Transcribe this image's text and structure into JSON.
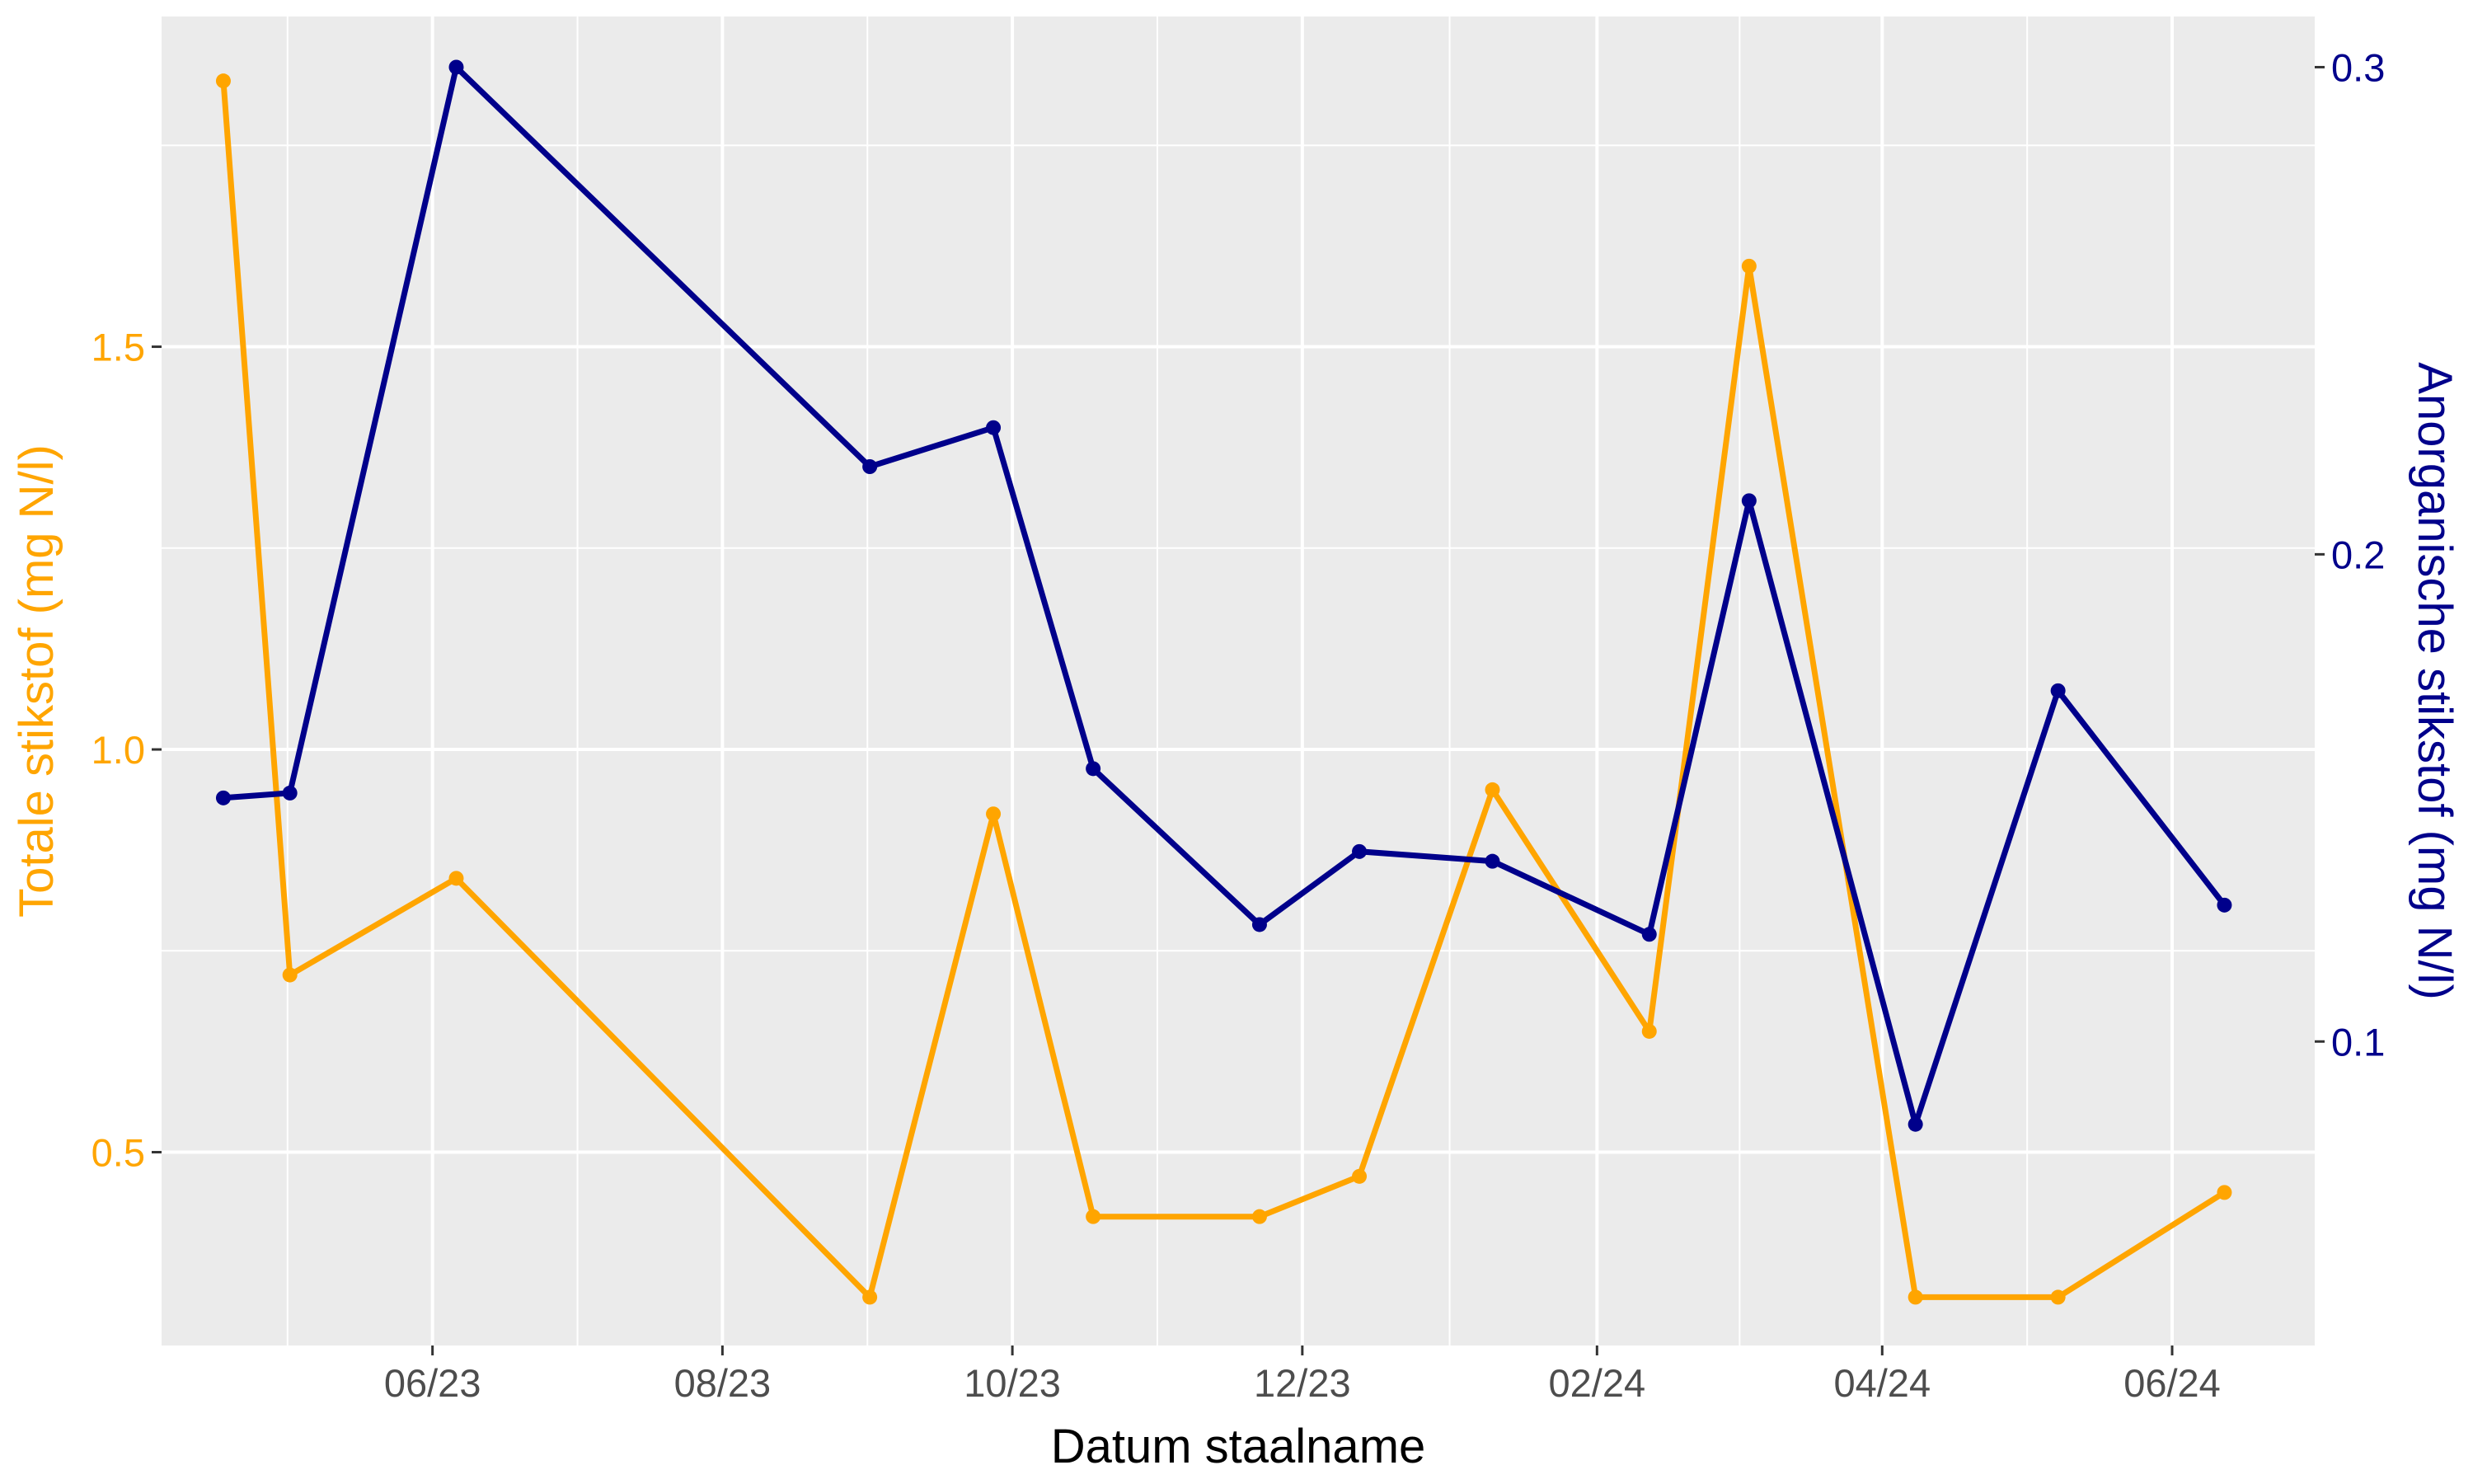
{
  "chart_data": {
    "type": "line",
    "xlabel": "Datum staalname",
    "ylabel_left": "Totale stikstof (mg N/l)",
    "ylabel_right": "Anorganische stikstof (mg N/l)",
    "grid": true,
    "legend": "none",
    "colors": {
      "left": "#FFA500",
      "right": "#00008B",
      "panel": "#EBEBEB",
      "grid": "#FFFFFF"
    },
    "x_ticks": [
      {
        "date": "2023-06-01",
        "label": "06/23"
      },
      {
        "date": "2023-08-01",
        "label": "08/23"
      },
      {
        "date": "2023-10-01",
        "label": "10/23"
      },
      {
        "date": "2023-12-01",
        "label": "12/23"
      },
      {
        "date": "2024-02-01",
        "label": "02/24"
      },
      {
        "date": "2024-04-01",
        "label": "04/24"
      },
      {
        "date": "2024-06-01",
        "label": "06/24"
      }
    ],
    "xlim": [
      "2023-04-05",
      "2024-07-01"
    ],
    "ylim_left": [
      0.26,
      1.91
    ],
    "ylim_right": [
      0.0376,
      0.3104
    ],
    "y_ticks_left": [
      {
        "value": 0.5,
        "label": "0.5"
      },
      {
        "value": 1.0,
        "label": "1.0"
      },
      {
        "value": 1.5,
        "label": "1.5"
      }
    ],
    "y_ticks_right": [
      {
        "value": 0.1,
        "label": "0.1"
      },
      {
        "value": 0.2,
        "label": "0.2"
      },
      {
        "value": 0.3,
        "label": "0.3"
      }
    ],
    "series": [
      {
        "axis": "left",
        "values": [
          {
            "x": "2023-04-18",
            "y": 1.83
          },
          {
            "x": "2023-05-02",
            "y": 0.72
          },
          {
            "x": "2023-06-06",
            "y": 0.84
          },
          {
            "x": "2023-09-01",
            "y": 0.32
          },
          {
            "x": "2023-09-27",
            "y": 0.92
          },
          {
            "x": "2023-10-18",
            "y": 0.42
          },
          {
            "x": "2023-11-22",
            "y": 0.42
          },
          {
            "x": "2023-12-13",
            "y": 0.47
          },
          {
            "x": "2024-01-10",
            "y": 0.95
          },
          {
            "x": "2024-02-12",
            "y": 0.65
          },
          {
            "x": "2024-03-04",
            "y": 1.6
          },
          {
            "x": "2024-04-08",
            "y": 0.32
          },
          {
            "x": "2024-05-08",
            "y": 0.32
          },
          {
            "x": "2024-06-12",
            "y": 0.45
          }
        ]
      },
      {
        "axis": "right",
        "values": [
          {
            "x": "2023-04-18",
            "y": 0.15
          },
          {
            "x": "2023-05-02",
            "y": 0.151
          },
          {
            "x": "2023-06-06",
            "y": 0.3
          },
          {
            "x": "2023-09-01",
            "y": 0.218
          },
          {
            "x": "2023-09-27",
            "y": 0.226
          },
          {
            "x": "2023-10-18",
            "y": 0.156
          },
          {
            "x": "2023-11-22",
            "y": 0.124
          },
          {
            "x": "2023-12-13",
            "y": 0.139
          },
          {
            "x": "2024-01-10",
            "y": 0.137
          },
          {
            "x": "2024-02-12",
            "y": 0.122
          },
          {
            "x": "2024-03-04",
            "y": 0.211
          },
          {
            "x": "2024-04-08",
            "y": 0.083
          },
          {
            "x": "2024-05-08",
            "y": 0.172
          },
          {
            "x": "2024-06-12",
            "y": 0.128
          }
        ]
      }
    ]
  }
}
